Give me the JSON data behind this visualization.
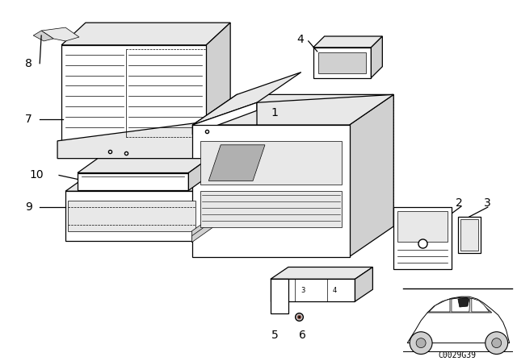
{
  "background_color": "#ffffff",
  "line_color": "#000000",
  "diagram_code": "C0029G39",
  "fig_width": 6.4,
  "fig_height": 4.48,
  "dpi": 100,
  "lw_main": 0.9,
  "lw_thin": 0.5
}
